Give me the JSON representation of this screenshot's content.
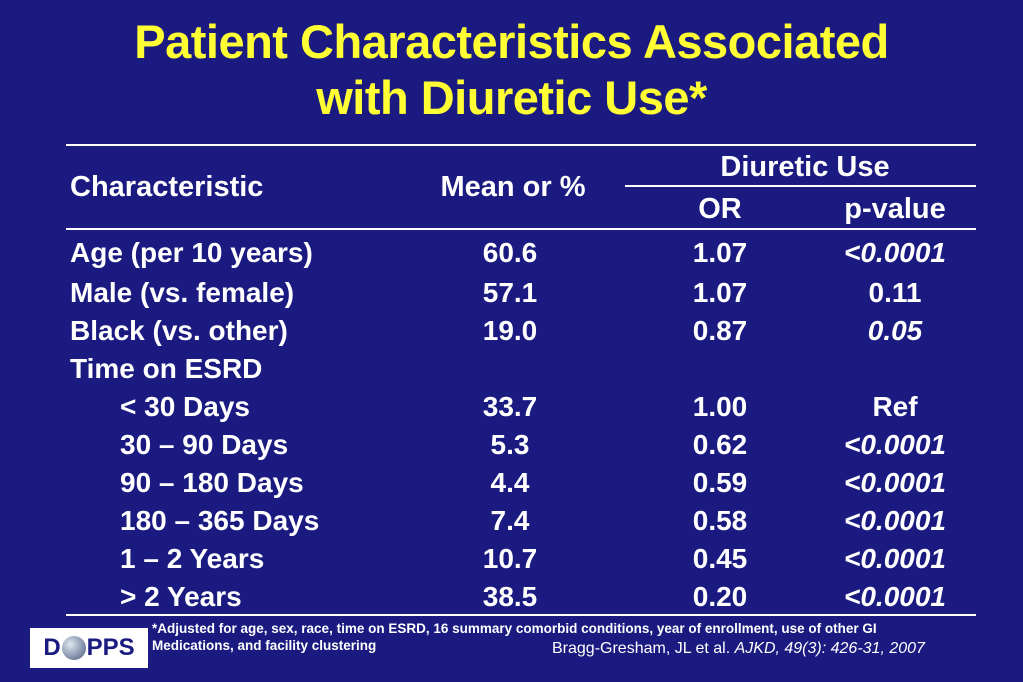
{
  "title": {
    "line1": "Patient Characteristics Associated",
    "line2": "with Diuretic Use*"
  },
  "table": {
    "headers": {
      "characteristic": "Characteristic",
      "mean": "Mean or %",
      "group": "Diuretic Use",
      "or": "OR",
      "p": "p-value"
    },
    "rows": [
      {
        "label": "Age (per 10 years)",
        "mean": "60.6",
        "or": "1.07",
        "p": "<0.0001"
      },
      {
        "label": "Male (vs. female)",
        "mean": "57.1",
        "or": "1.07",
        "p": "0.11"
      },
      {
        "label": "Black (vs. other)",
        "mean": "19.0",
        "or": "0.87",
        "p": "0.05"
      },
      {
        "label": "Time on ESRD",
        "mean": "",
        "or": "",
        "p": ""
      },
      {
        "label": "< 30 Days",
        "mean": "33.7",
        "or": "1.00",
        "p": "Ref"
      },
      {
        "label": "30 – 90 Days",
        "mean": "5.3",
        "or": "0.62",
        "p": "<0.0001"
      },
      {
        "label": "90 – 180 Days",
        "mean": "4.4",
        "or": "0.59",
        "p": "<0.0001"
      },
      {
        "label": "180 – 365 Days",
        "mean": "7.4",
        "or": "0.58",
        "p": "<0.0001"
      },
      {
        "label": "1 – 2 Years",
        "mean": "10.7",
        "or": "0.45",
        "p": "<0.0001"
      },
      {
        "label": "> 2 Years",
        "mean": "38.5",
        "or": "0.20",
        "p": "<0.0001"
      }
    ]
  },
  "footnote": {
    "line1": "*Adjusted for age, sex, race, time on ESRD, 16 summary comorbid conditions, year of enrollment, use of other GI",
    "line2": "Medications, and facility clustering"
  },
  "citation": {
    "authors": "Bragg-Gresham, JL et al. ",
    "journal": "AJKD, 49(3): 426-31, 2007"
  },
  "logo": {
    "text_left": "D",
    "text_right": "PPS"
  },
  "colors": {
    "background": "#1a1a80",
    "title": "#ffff33",
    "text": "#ffffff"
  }
}
